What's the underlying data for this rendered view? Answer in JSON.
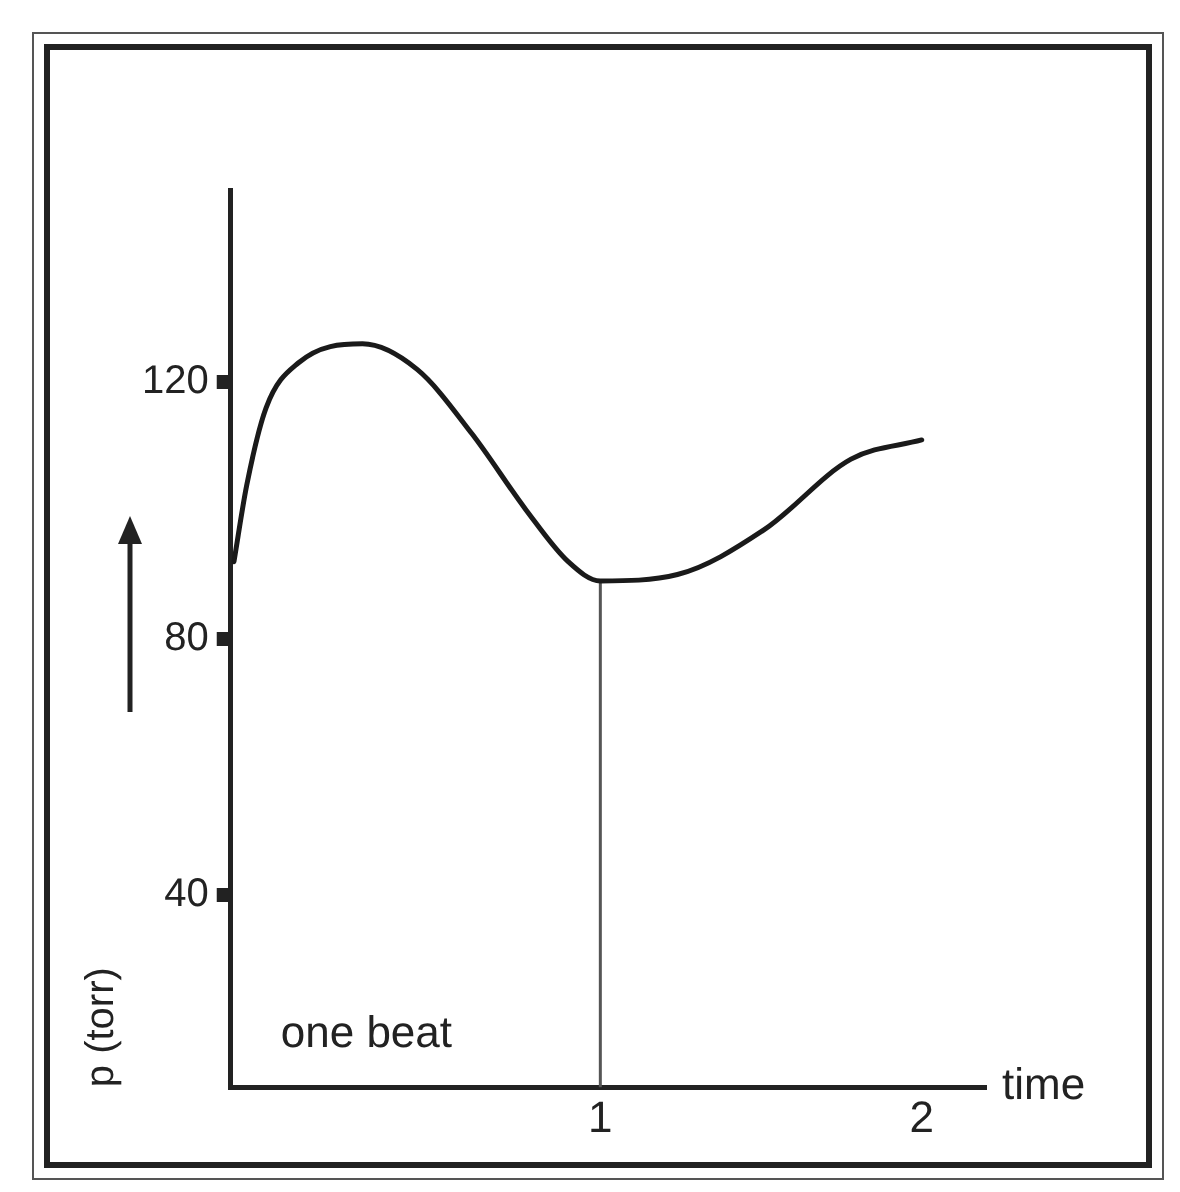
{
  "chart_data": {
    "type": "line",
    "xlabel": "time",
    "ylabel": "p (torr)",
    "x": [
      -0.14,
      -0.1,
      -0.04,
      0.06,
      0.26,
      0.43,
      0.6,
      0.77,
      0.9,
      1.0,
      1.24,
      1.51,
      1.78,
      2.0
    ],
    "series": [
      {
        "color": "#1a1a1a",
        "values": [
          92,
          104,
          116,
          123,
          126,
          122,
          112,
          100,
          92,
          89,
          90,
          97,
          108,
          111
        ]
      }
    ],
    "xlim": [
      -0.15,
      2.2
    ],
    "xticks": [
      1,
      2
    ],
    "ylim": [
      10,
      150
    ],
    "yticks": [
      40,
      80,
      120
    ],
    "ref_lines": [
      {
        "axis": "x",
        "value": 1,
        "color": "#555555"
      }
    ],
    "annotations": [
      "one beat"
    ],
    "grid": false,
    "legend": false,
    "marker": "none",
    "line_style": "solid"
  }
}
